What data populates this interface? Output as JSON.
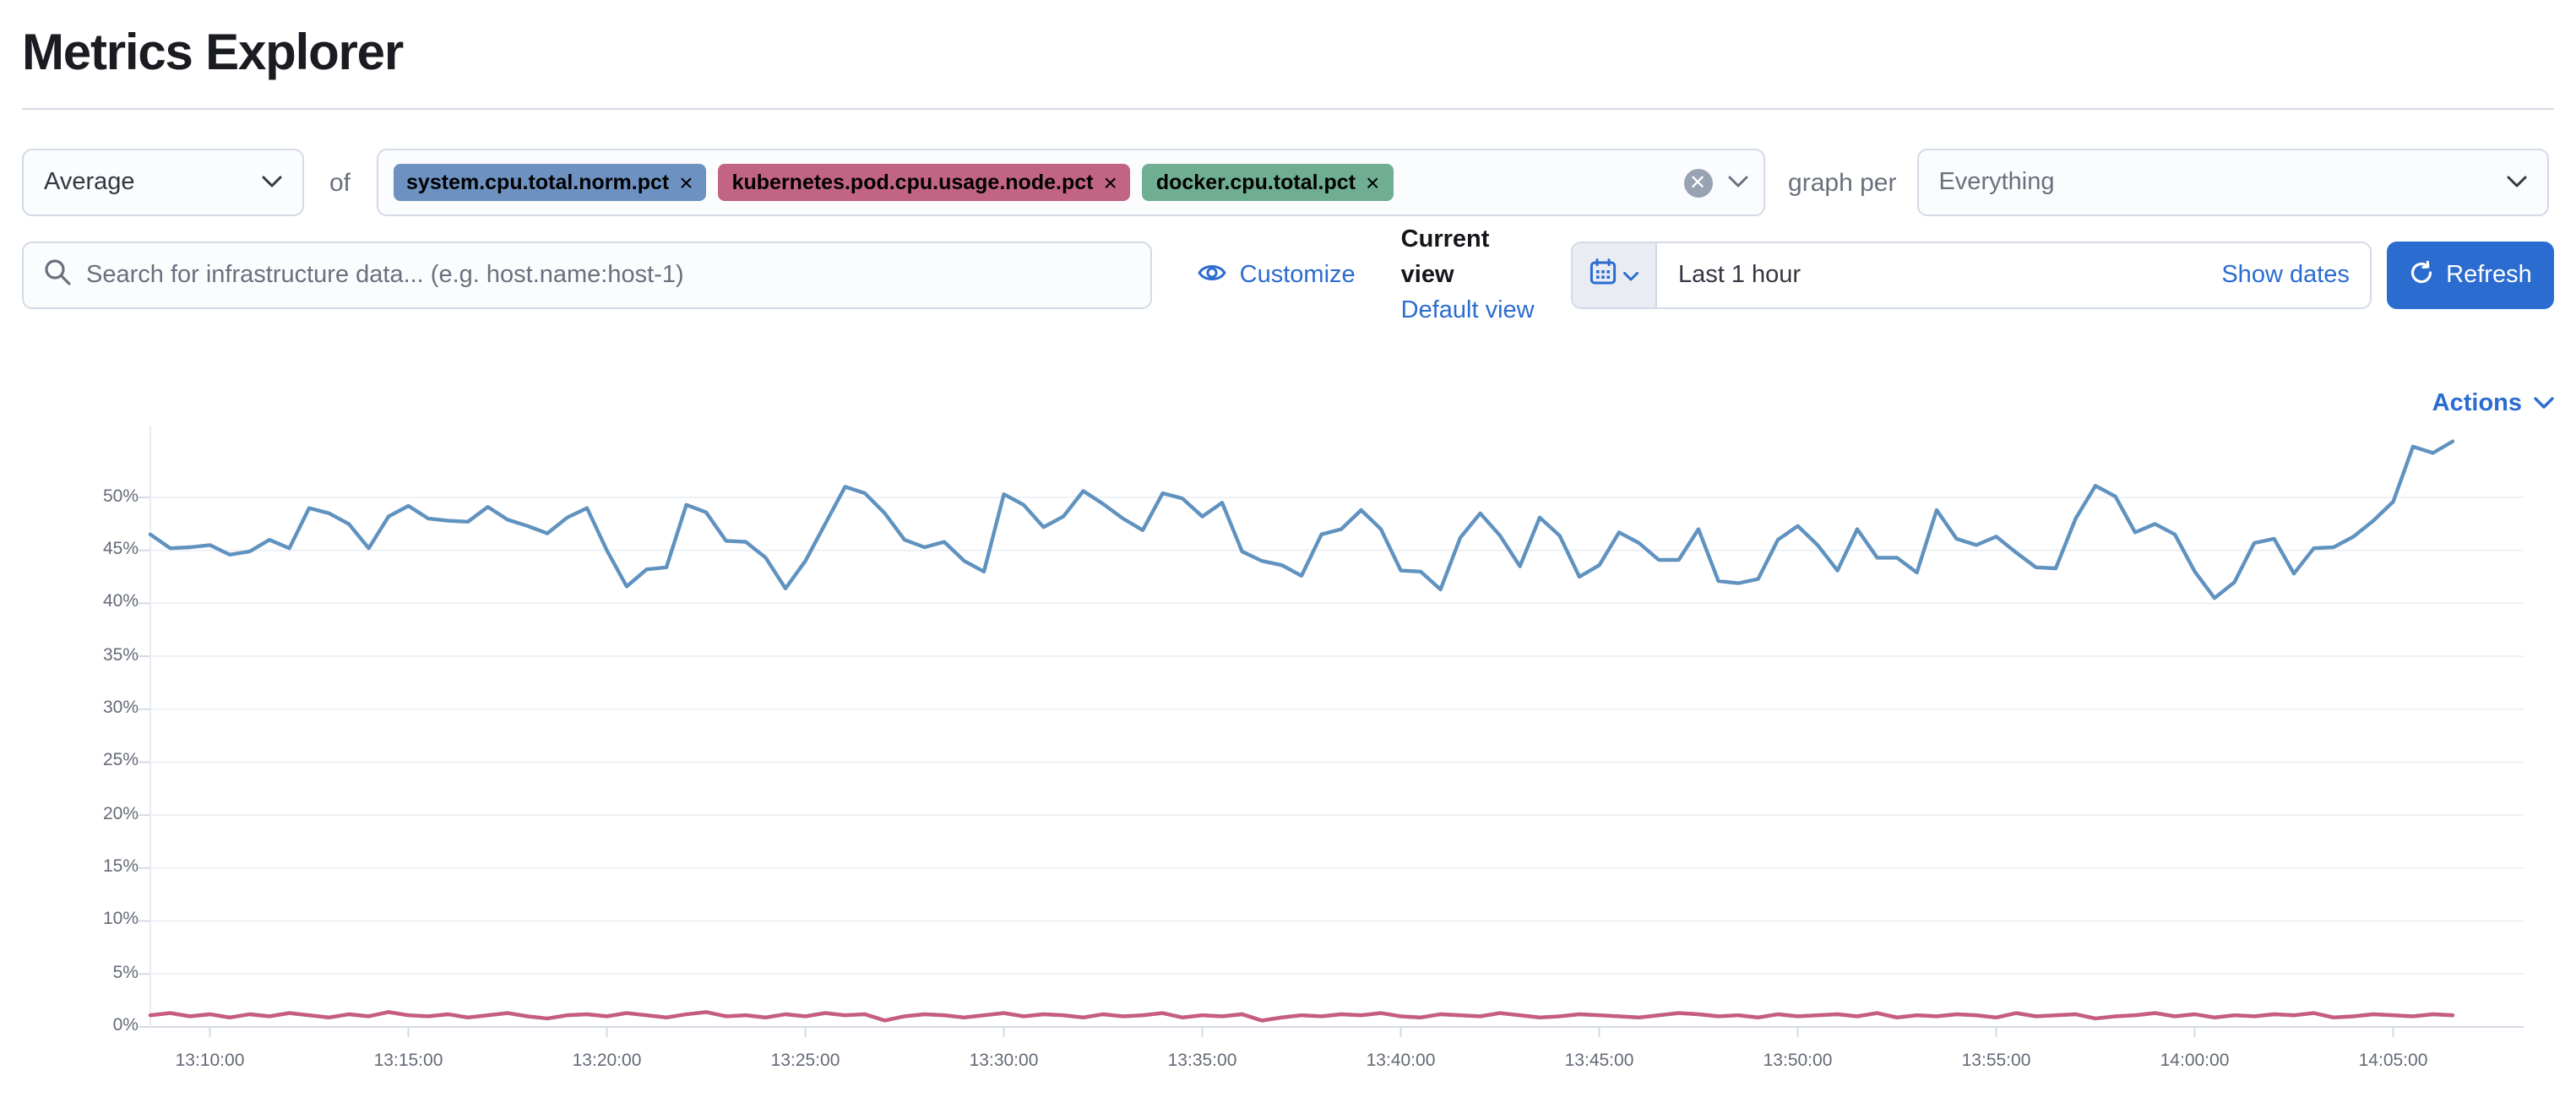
{
  "page": {
    "title": "Metrics Explorer"
  },
  "colors": {
    "primary": "#2b6cd0",
    "pill_blue": "#6d92c1",
    "pill_pink": "#c26484",
    "pill_green": "#6fae92",
    "line_blue": "#6092c0",
    "line_pink": "#c75c80",
    "line_green": "#6fae92"
  },
  "toolbar": {
    "aggregation": {
      "value": "Average"
    },
    "of_label": "of",
    "metrics": [
      {
        "label": "system.cpu.total.norm.pct",
        "color": "#6d92c1"
      },
      {
        "label": "kubernetes.pod.cpu.usage.node.pct",
        "color": "#c26484"
      },
      {
        "label": "docker.cpu.total.pct",
        "color": "#6fae92"
      }
    ],
    "graph_per_label": "graph per",
    "group_by": {
      "value": "Everything"
    }
  },
  "search": {
    "placeholder": "Search for infrastructure data... (e.g. host.name:host-1)"
  },
  "view_controls": {
    "customize_label": "Customize",
    "current_view_label": "Current view",
    "default_view_label": "Default view"
  },
  "time_controls": {
    "range_label": "Last 1 hour",
    "show_dates_label": "Show dates",
    "refresh_label": "Refresh"
  },
  "actions": {
    "label": "Actions"
  },
  "chart_data": {
    "type": "line",
    "title": "",
    "xlabel": "",
    "ylabel": "",
    "x_start": "13:08:30",
    "x_interval_seconds": 30,
    "x_tick_labels": [
      "13:10:00",
      "13:15:00",
      "13:20:00",
      "13:25:00",
      "13:30:00",
      "13:35:00",
      "13:40:00",
      "13:45:00",
      "13:50:00",
      "13:55:00",
      "14:00:00",
      "14:05:00"
    ],
    "y_tick_labels": [
      "0%",
      "5%",
      "10%",
      "15%",
      "20%",
      "25%",
      "30%",
      "35%",
      "40%",
      "45%",
      "50%"
    ],
    "ylim": [
      0,
      56.5
    ],
    "grid": true,
    "legend": "none",
    "series": [
      {
        "name": "system.cpu.total.norm.pct (avg)",
        "color": "#6092c0",
        "values": [
          46.5,
          45.2,
          45.3,
          45.5,
          44.6,
          44.9,
          46.0,
          45.2,
          49.0,
          48.5,
          47.5,
          45.2,
          48.2,
          49.2,
          48.0,
          47.8,
          47.7,
          49.1,
          47.9,
          47.3,
          46.6,
          48.1,
          49.0,
          45.0,
          41.6,
          43.2,
          43.4,
          49.3,
          48.6,
          45.9,
          45.8,
          44.3,
          41.4,
          44.0,
          47.5,
          51.0,
          50.4,
          48.5,
          46.0,
          45.3,
          45.8,
          44.0,
          43.0,
          50.3,
          49.3,
          47.2,
          48.2,
          50.6,
          49.4,
          48.0,
          46.9,
          50.4,
          49.9,
          48.2,
          49.5,
          44.9,
          44.0,
          43.6,
          42.6,
          46.5,
          47.0,
          48.8,
          47.0,
          43.1,
          43.0,
          41.3,
          46.2,
          48.5,
          46.4,
          43.5,
          48.1,
          46.4,
          42.5,
          43.6,
          46.7,
          45.7,
          44.1,
          44.1,
          47.0,
          42.1,
          41.9,
          42.3,
          46.0,
          47.3,
          45.5,
          43.1,
          47.0,
          44.3,
          44.3,
          42.9,
          48.8,
          46.1,
          45.5,
          46.3,
          44.8,
          43.4,
          43.3,
          48.0,
          51.1,
          50.1,
          46.7,
          47.5,
          46.5,
          43.0,
          40.5,
          42.0,
          45.7,
          46.1,
          42.8,
          45.2,
          45.3,
          46.3,
          47.8,
          49.6,
          54.8,
          54.2,
          55.3
        ]
      },
      {
        "name": "kubernetes.pod.cpu.usage.node.pct (avg)",
        "color": "#c75c80",
        "values": [
          1.1,
          1.3,
          1.0,
          1.2,
          0.9,
          1.2,
          1.0,
          1.3,
          1.1,
          0.9,
          1.2,
          1.0,
          1.4,
          1.1,
          1.0,
          1.2,
          0.9,
          1.1,
          1.3,
          1.0,
          0.8,
          1.1,
          1.2,
          1.0,
          1.3,
          1.1,
          0.9,
          1.2,
          1.4,
          1.0,
          1.1,
          0.9,
          1.2,
          1.0,
          1.3,
          1.1,
          1.2,
          0.6,
          1.0,
          1.2,
          1.1,
          0.9,
          1.1,
          1.3,
          1.0,
          1.2,
          1.1,
          0.9,
          1.2,
          1.0,
          1.1,
          1.3,
          0.9,
          1.1,
          1.0,
          1.2,
          0.6,
          0.9,
          1.1,
          1.0,
          1.2,
          1.1,
          1.3,
          1.0,
          0.9,
          1.2,
          1.1,
          1.0,
          1.3,
          1.1,
          0.9,
          1.0,
          1.2,
          1.1,
          1.0,
          0.9,
          1.1,
          1.3,
          1.2,
          1.0,
          1.1,
          0.9,
          1.2,
          1.0,
          1.1,
          1.2,
          1.0,
          1.3,
          0.9,
          1.1,
          1.0,
          1.2,
          1.1,
          0.9,
          1.3,
          1.0,
          1.1,
          1.2,
          0.8,
          1.0,
          1.1,
          1.3,
          1.0,
          1.2,
          0.9,
          1.1,
          1.0,
          1.2,
          1.1,
          1.3,
          0.9,
          1.0,
          1.2,
          1.1,
          1.0,
          1.2,
          1.1
        ]
      },
      {
        "name": "docker.cpu.total.pct (avg)",
        "color": "#6fae92",
        "values": [
          1.1,
          1.3,
          1.0,
          1.2,
          0.9,
          1.2,
          1.0,
          1.3,
          1.1,
          0.9,
          1.2,
          1.0,
          1.4,
          1.1,
          1.0,
          1.2,
          0.9,
          1.1,
          1.3,
          1.0,
          0.8,
          1.1,
          1.2,
          1.0,
          1.3,
          1.1,
          0.9,
          1.2,
          1.4,
          1.0,
          1.1,
          0.9,
          1.2,
          1.0,
          1.3,
          1.1,
          1.2,
          0.6,
          1.0,
          1.2,
          1.1,
          0.9,
          1.1,
          1.3,
          1.0,
          1.2,
          1.1,
          0.9,
          1.2,
          1.0,
          1.1,
          1.3,
          0.9,
          1.1,
          1.0,
          1.2,
          0.6,
          0.9,
          1.1,
          1.0,
          1.2,
          1.1,
          1.3,
          1.0,
          0.9,
          1.2,
          1.1,
          1.0,
          1.3,
          1.1,
          0.9,
          1.0,
          1.2,
          1.1,
          1.0,
          0.9,
          1.1,
          1.3,
          1.2,
          1.0,
          1.1,
          0.9,
          1.2,
          1.0,
          1.1,
          1.2,
          1.0,
          1.3,
          0.9,
          1.1,
          1.0,
          1.2,
          1.1,
          0.9,
          1.3,
          1.0,
          1.1,
          1.2,
          0.8,
          1.0,
          1.1,
          1.3,
          1.0,
          1.2,
          0.9,
          1.1,
          1.0,
          1.2,
          1.1,
          1.3,
          0.9,
          1.0,
          1.2,
          1.1,
          1.0,
          1.2,
          1.1
        ]
      }
    ]
  }
}
